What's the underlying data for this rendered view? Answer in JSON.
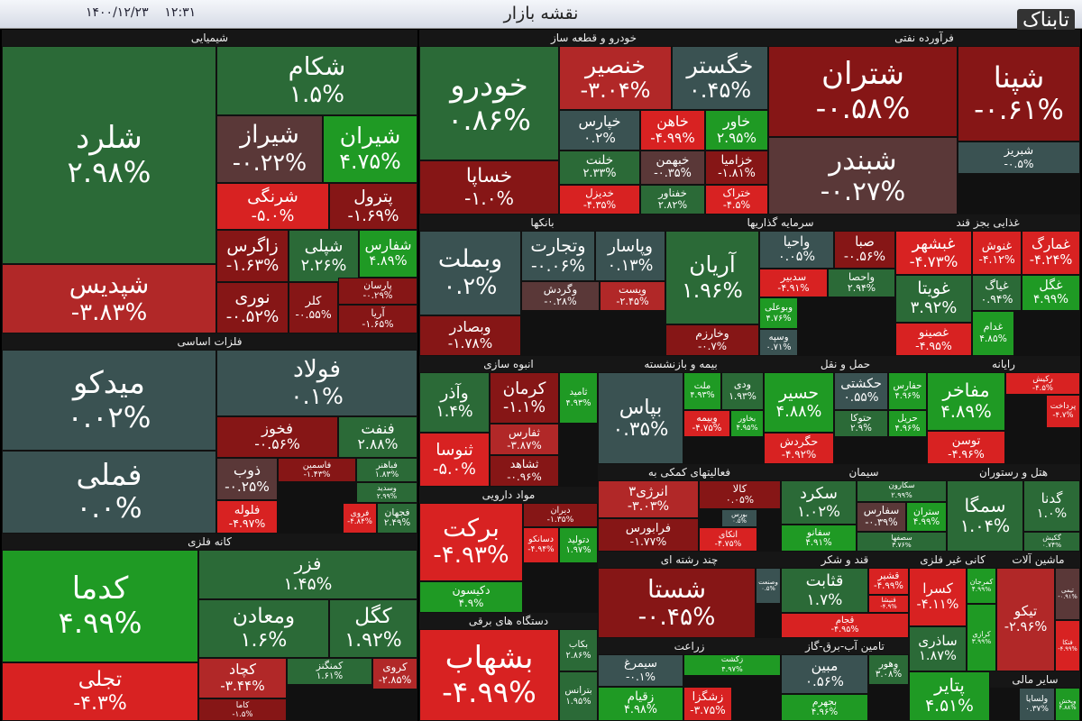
{
  "header": {
    "title": "نقشه بازار",
    "date": "۱۴۰۰/۱۲/۲۳",
    "time": "۱۲:۳۱",
    "logo": "تابناک"
  },
  "sectors": [
    {
      "name": "شیمیایی",
      "tiles": [
        {
          "symbol": "شلرد",
          "change": "۲.۹۸%"
        },
        {
          "symbol": "شپدیس",
          "change": "-۳.۸۳%"
        },
        {
          "symbol": "شکام",
          "change": "۱.۵%"
        },
        {
          "symbol": "شیراز",
          "change": "-۰.۲۲%"
        },
        {
          "symbol": "شیران",
          "change": "۴.۷۵%"
        },
        {
          "symbol": "شرنگی",
          "change": "-۵.۰%"
        },
        {
          "symbol": "پترول",
          "change": "-۱.۶۹%"
        },
        {
          "symbol": "زاگرس",
          "change": "-۱.۶۳%"
        },
        {
          "symbol": "شپلی",
          "change": "۲.۲۶%"
        },
        {
          "symbol": "شفارس",
          "change": "۴.۸۹%"
        },
        {
          "symbol": "نوری",
          "change": "-۰.۵۲%"
        },
        {
          "symbol": "کلر",
          "change": "-۰.۵۵%"
        },
        {
          "symbol": "پارسان",
          "change": "-۰.۲۹%"
        },
        {
          "symbol": "آریا",
          "change": "-۱.۶۵%"
        }
      ]
    },
    {
      "name": "فلزات اساسی",
      "tiles": [
        {
          "symbol": "میدکو",
          "change": "۰.۰۲%"
        },
        {
          "symbol": "فملی",
          "change": "۰.۰%"
        },
        {
          "symbol": "فولاد",
          "change": "۰.۱%"
        },
        {
          "symbol": "فخوز",
          "change": "-۰.۵۶%"
        },
        {
          "symbol": "فنفت",
          "change": "۲.۸۸%"
        },
        {
          "symbol": "ذوب",
          "change": "-۰.۲۵%"
        },
        {
          "symbol": "فاسمین",
          "change": "-۱.۴۳%"
        },
        {
          "symbol": "فباهنر",
          "change": "۱.۸۳%"
        },
        {
          "symbol": "وسدید",
          "change": "۲.۹۹%"
        },
        {
          "symbol": "فلوله",
          "change": "-۴.۹۷%"
        },
        {
          "symbol": "فروی",
          "change": "-۴.۸۴%"
        },
        {
          "symbol": "فجهان",
          "change": "۲.۴۹%"
        }
      ]
    },
    {
      "name": "کانه فلزی",
      "tiles": [
        {
          "symbol": "کدما",
          "change": "۴.۹۹%"
        },
        {
          "symbol": "تجلی",
          "change": "-۴.۳%"
        },
        {
          "symbol": "فزر",
          "change": "۱.۴۵%"
        },
        {
          "symbol": "ومعادن",
          "change": "۱.۶%"
        },
        {
          "symbol": "کگل",
          "change": "۱.۹۲%"
        },
        {
          "symbol": "کچاد",
          "change": "-۳.۴۴%"
        },
        {
          "symbol": "کاما",
          "change": "-۱.۵%"
        },
        {
          "symbol": "کمنگنز",
          "change": "۱.۶۱%"
        },
        {
          "symbol": "کروی",
          "change": "-۲.۸۵%"
        }
      ]
    },
    {
      "name": "خودرو و قطعه ساز",
      "tiles": [
        {
          "symbol": "خودرو",
          "change": "۰.۸۶%"
        },
        {
          "symbol": "خساپا",
          "change": "-۱.۰%"
        },
        {
          "symbol": "خنصیر",
          "change": "-۳.۰۴%"
        },
        {
          "symbol": "خگستر",
          "change": "۰.۴۵%"
        },
        {
          "symbol": "خپارس",
          "change": "۰.۲%"
        },
        {
          "symbol": "خاهن",
          "change": "-۴.۹۹%"
        },
        {
          "symbol": "خاور",
          "change": "۲.۹۵%"
        },
        {
          "symbol": "خلنت",
          "change": "۲.۳۳%"
        },
        {
          "symbol": "خبهمن",
          "change": "-۰.۳۵%"
        },
        {
          "symbol": "خزامیا",
          "change": "-۱.۸۱%"
        },
        {
          "symbol": "خدیزل",
          "change": "-۴.۳۵%"
        },
        {
          "symbol": "خفناور",
          "change": "۲.۸۲%"
        },
        {
          "symbol": "ختراک",
          "change": "-۴.۵%"
        }
      ]
    },
    {
      "name": "فرآورده نفتی",
      "tiles": [
        {
          "symbol": "شتران",
          "change": "-۰.۵۸%"
        },
        {
          "symbol": "شبندر",
          "change": "-۰.۲۷%"
        },
        {
          "symbol": "شپنا",
          "change": "-۰.۶۱%"
        },
        {
          "symbol": "شبریز",
          "change": "-۰.۵%"
        }
      ]
    },
    {
      "name": "بانکها",
      "tiles": [
        {
          "symbol": "وبملت",
          "change": "۰.۲%"
        },
        {
          "symbol": "وتجارت",
          "change": "-۰.۰۶%"
        },
        {
          "symbol": "وپاسار",
          "change": "۰.۱۳%"
        },
        {
          "symbol": "وگردش",
          "change": "-۰.۲۸%"
        },
        {
          "symbol": "ویست",
          "change": "-۲.۴۵%"
        },
        {
          "symbol": "وبصادر",
          "change": "-۱.۷۸%"
        }
      ]
    },
    {
      "name": "سرمایه گذاریها",
      "tiles": [
        {
          "symbol": "آریان",
          "change": "۱.۹۶%"
        },
        {
          "symbol": "وخارزم",
          "change": "-۰.۷%"
        },
        {
          "symbol": "واحیا",
          "change": "۰.۰۵%"
        },
        {
          "symbol": "صبا",
          "change": "-۰.۵۶%"
        },
        {
          "symbol": "سدبیر",
          "change": "-۴.۹۱%"
        },
        {
          "symbol": "واحصا",
          "change": "۲.۹۴%"
        },
        {
          "symbol": "وبوعلی",
          "change": "۴.۷۶%"
        },
        {
          "symbol": "وسپه",
          "change": "۰.۷۱%"
        }
      ]
    },
    {
      "name": "غذایی بجز قند",
      "tiles": [
        {
          "symbol": "غبشهر",
          "change": "-۴.۷۳%"
        },
        {
          "symbol": "غنوش",
          "change": "-۴.۱۲%"
        },
        {
          "symbol": "غمارگ",
          "change": "-۴.۲۴%"
        },
        {
          "symbol": "غویتا",
          "change": "۳.۹۲%"
        },
        {
          "symbol": "غیاگ",
          "change": "۰.۹۴%"
        },
        {
          "symbol": "غگل",
          "change": "۴.۹۹%"
        },
        {
          "symbol": "غصینو",
          "change": "-۴.۹۵%"
        },
        {
          "symbol": "غدام",
          "change": "۴.۸۵%"
        }
      ]
    },
    {
      "name": "انبوه سازی",
      "tiles": [
        {
          "symbol": "وآذر",
          "change": "۱.۴%"
        },
        {
          "symbol": "ثنوسا",
          "change": "-۵.۰%"
        },
        {
          "symbol": "کرمان",
          "change": "-۱.۱%"
        },
        {
          "symbol": "ثامید",
          "change": "۴.۹۳%"
        },
        {
          "symbol": "ثفارس",
          "change": "-۳.۸۷%"
        },
        {
          "symbol": "ثشاهد",
          "change": "-۰.۹۶%"
        }
      ]
    },
    {
      "name": "بیمه و بازنشسته",
      "tiles": [
        {
          "symbol": "بپاس",
          "change": "۰.۳۵%"
        },
        {
          "symbol": "ملت",
          "change": "۴.۹۳%"
        },
        {
          "symbol": "ودی",
          "change": "۱.۹۳%"
        },
        {
          "symbol": "وبیمه",
          "change": "-۴.۷۵%"
        },
        {
          "symbol": "بخاور",
          "change": "۴.۹۵%"
        }
      ]
    },
    {
      "name": "حمل و نقل",
      "tiles": [
        {
          "symbol": "حسیر",
          "change": "۴.۸۸%"
        },
        {
          "symbol": "حکشتی",
          "change": "۰.۵۵%"
        },
        {
          "symbol": "حفارس",
          "change": "۴.۹۶%"
        },
        {
          "symbol": "حگردش",
          "change": "-۴.۹۲%"
        },
        {
          "symbol": "حتوکا",
          "change": "۲.۹%"
        },
        {
          "symbol": "حریل",
          "change": "۴.۹۶%"
        }
      ]
    },
    {
      "name": "رایانه",
      "tiles": [
        {
          "symbol": "مفاخر",
          "change": "۴.۸۹%"
        },
        {
          "symbol": "توسن",
          "change": "-۴.۹۶%"
        },
        {
          "symbol": "رکیش",
          "change": "-۴.۵%"
        },
        {
          "symbol": "پرداخت",
          "change": "-۴.۷%"
        }
      ]
    },
    {
      "name": "مواد دارویی",
      "tiles": [
        {
          "symbol": "برکت",
          "change": "-۴.۹۳%"
        },
        {
          "symbol": "دکیسون",
          "change": "۴.۹%"
        },
        {
          "symbol": "دیران",
          "change": "-۱.۳۵%"
        },
        {
          "symbol": "دسانکو",
          "change": "-۴.۹۴%"
        },
        {
          "symbol": "دتولید",
          "change": "۱.۹۷%"
        }
      ]
    },
    {
      "name": "فعالیتهای کمکی به",
      "tiles": [
        {
          "symbol": "انرژی۳",
          "change": "-۳.۰۳%"
        },
        {
          "symbol": "فرابورس",
          "change": "-۱.۷۷%"
        },
        {
          "symbol": "کالا",
          "change": "۰.۰۵%"
        },
        {
          "symbol": "بورس",
          "change": "۰.۵%"
        },
        {
          "symbol": "اتکای",
          "change": "-۴.۷۵%"
        }
      ]
    },
    {
      "name": "سیمان",
      "tiles": [
        {
          "symbol": "سکرد",
          "change": "۱.۰۲%"
        },
        {
          "symbol": "سکارون",
          "change": "۲.۹۹%"
        },
        {
          "symbol": "سفارس",
          "change": "-۰.۳۹%"
        },
        {
          "symbol": "ستران",
          "change": "۴.۹۹%"
        },
        {
          "symbol": "سفانو",
          "change": "۴.۹۱%"
        },
        {
          "symbol": "سصفها",
          "change": "۳.۷۶%"
        }
      ]
    },
    {
      "name": "هتل و رستوران",
      "tiles": [
        {
          "symbol": "سمگا",
          "change": "۱.۰۴%"
        },
        {
          "symbol": "گدنا",
          "change": "۱.۰%"
        },
        {
          "symbol": "گکیش",
          "change": "۰.۷۴%"
        }
      ]
    },
    {
      "name": "چند رشته ای",
      "tiles": [
        {
          "symbol": "شستا",
          "change": "-۰.۴۵%"
        },
        {
          "symbol": "وصنعت",
          "change": "۰.۵%"
        }
      ]
    },
    {
      "name": "قند و شکر",
      "tiles": [
        {
          "symbol": "قثابت",
          "change": "۱.۷%"
        },
        {
          "symbol": "قشیر",
          "change": "-۴.۹۹%"
        },
        {
          "symbol": "قنیشا",
          "change": "-۴.۹%"
        },
        {
          "symbol": "قجام",
          "change": "-۴.۹۵%"
        }
      ]
    },
    {
      "name": "کانی غیر فلزی",
      "tiles": [
        {
          "symbol": "کسرا",
          "change": "-۴.۱۱%"
        },
        {
          "symbol": "کمرجان",
          "change": "۴.۹۹%"
        },
        {
          "symbol": "ساذری",
          "change": "۱.۸۷%"
        },
        {
          "symbol": "کرازی",
          "change": "۳.۹۹%"
        }
      ]
    },
    {
      "name": "ماشین آلات",
      "tiles": [
        {
          "symbol": "تیکو",
          "change": "-۲.۹۶%"
        },
        {
          "symbol": "تیمی",
          "change": "-۰.۹۱%"
        },
        {
          "symbol": "فتکا",
          "change": "-۴.۹۹%"
        }
      ]
    },
    {
      "name": "دستگاه های برقی",
      "tiles": [
        {
          "symbol": "بشهاب",
          "change": "-۴.۹۹%"
        },
        {
          "symbol": "بکاب",
          "change": "۲.۸۶%"
        },
        {
          "symbol": "بترانس",
          "change": "۱.۹۵%"
        }
      ]
    },
    {
      "name": "زراعت",
      "tiles": [
        {
          "symbol": "سیمرغ",
          "change": "-۰.۱%"
        },
        {
          "symbol": "زقیام",
          "change": "۴.۹۸%"
        },
        {
          "symbol": "زکشت",
          "change": "۴.۹۷%"
        },
        {
          "symbol": "زشگزا",
          "change": "-۳.۷۵%"
        }
      ]
    },
    {
      "name": "تامین آب-برق-گاز",
      "tiles": [
        {
          "symbol": "مبین",
          "change": "۰.۵۶%"
        },
        {
          "symbol": "بجهرم",
          "change": "۴.۹۶%"
        },
        {
          "symbol": "وهور",
          "change": "۳.۰۸%"
        }
      ]
    },
    {
      "name": "لاستیک",
      "tiles": [
        {
          "symbol": "پتایر",
          "change": "۴.۵۱%"
        }
      ]
    },
    {
      "name": "سایر مالی",
      "tiles": [
        {
          "symbol": "ولسایا",
          "change": "۰.۳۷%"
        },
        {
          "symbol": "وپخش",
          "change": "۴.۸۸%"
        }
      ]
    }
  ]
}
